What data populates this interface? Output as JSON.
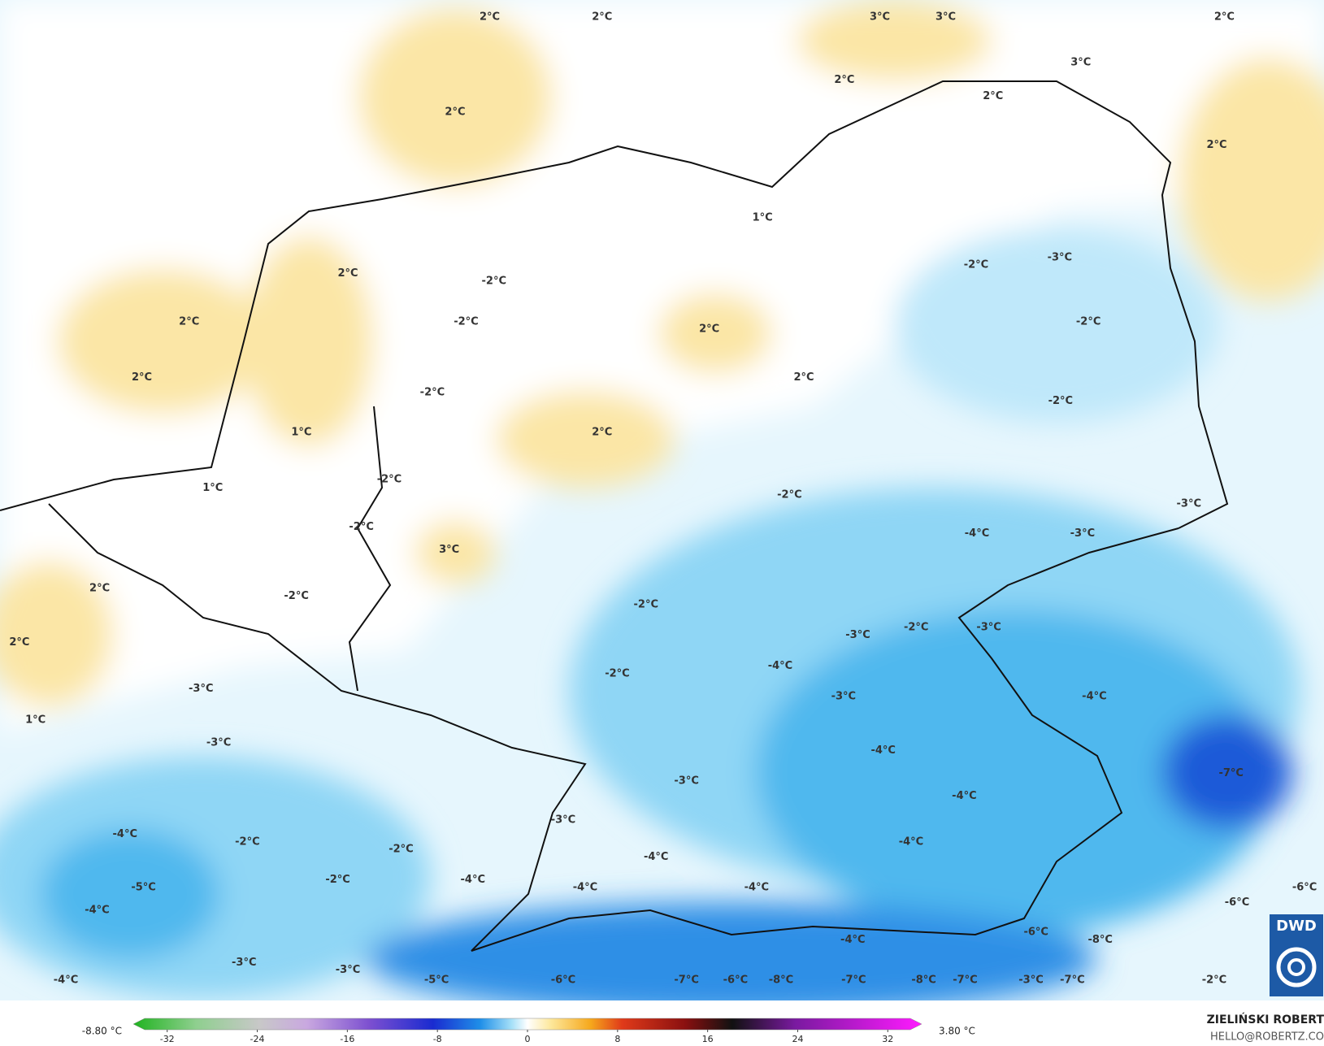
{
  "map_labels": [
    "2°C",
    "2°C",
    "3°C",
    "3°C",
    "2°C",
    "3°C",
    "2°C",
    "2°C",
    "2°C",
    "2°C",
    "1°C",
    "2°C",
    "-2°C",
    "-3°C",
    "-2°C",
    "2°C",
    "-2°C",
    "2°C",
    "-2°C",
    "2°C",
    "2°C",
    "-2°C",
    "-2°C",
    "1°C",
    "2°C",
    "-2°C",
    "1°C",
    "-2°C",
    "-3°C",
    "-2°C",
    "-4°C",
    "-3°C",
    "3°C",
    "2°C",
    "-2°C",
    "-2°C",
    "-2°C",
    "-3°C",
    "-3°C",
    "2°C",
    "-4°C",
    "-2°C",
    "-3°C",
    "-3°C",
    "-4°C",
    "1°C",
    "-3°C",
    "-4°C",
    "-7°C",
    "-3°C",
    "-4°C",
    "-3°C",
    "-4°C",
    "-2°C",
    "-4°C",
    "-2°C",
    "-4°C",
    "-2°C",
    "-4°C",
    "-5°C",
    "-4°C",
    "-4°C",
    "-6°C",
    "-6°C",
    "-4°C",
    "-4°C",
    "-6°C",
    "-8°C",
    "-3°C",
    "-3°C",
    "-4°C",
    "-5°C",
    "-6°C",
    "-7°C",
    "-6°C",
    "-8°C",
    "-7°C",
    "-8°C",
    "-7°C",
    "-3°C",
    "-7°C",
    "-2°C"
  ],
  "colorbar": {
    "lim": [
      -34,
      34
    ],
    "ticks": [
      -32,
      -24,
      -16,
      -8,
      0,
      8,
      16,
      24,
      32
    ],
    "min": {
      "value": -8.8,
      "label": "-8.80 °C"
    },
    "max": {
      "value": 3.8,
      "label": "3.80 °C"
    }
  },
  "author": {
    "name": "ZIELIŃSKI ROBERT",
    "contact": "HELLO@ROBERTZ.CO"
  },
  "logo": "DWD"
}
